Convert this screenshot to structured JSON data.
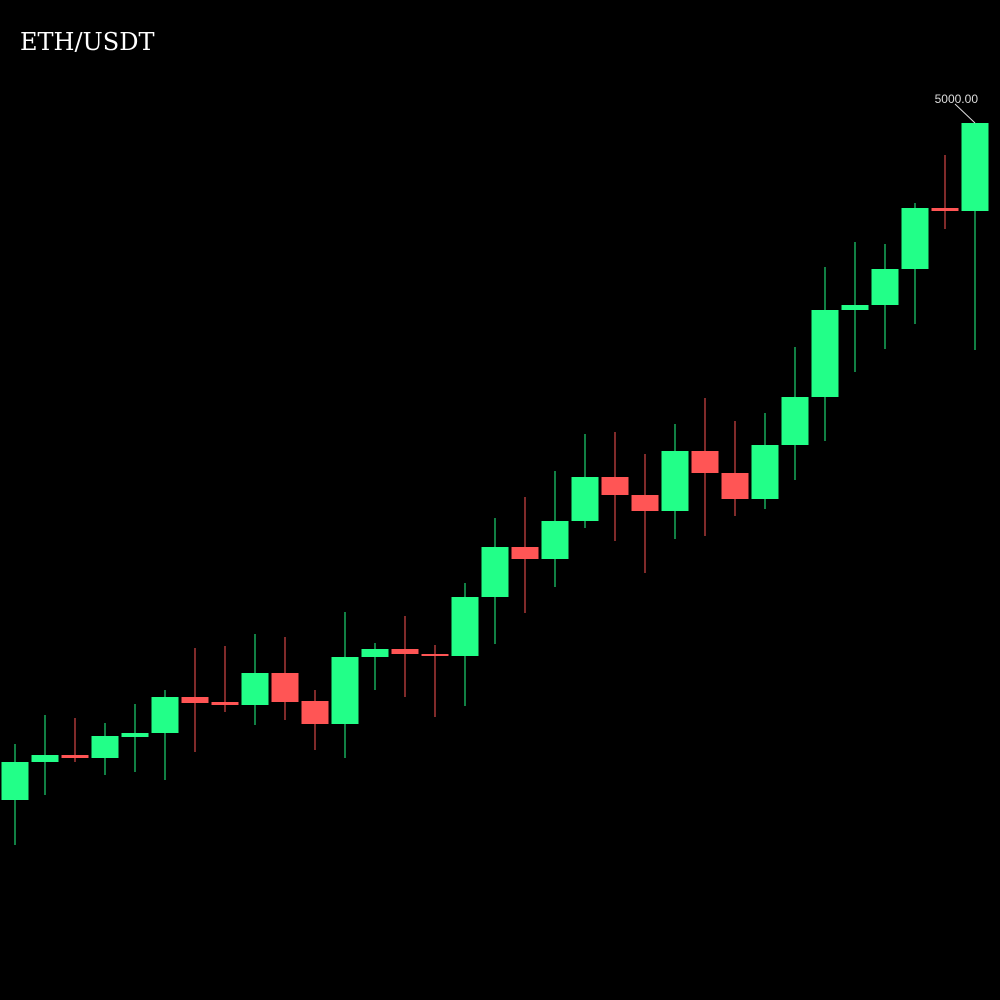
{
  "chart_data": {
    "type": "candlestick",
    "title": "ETH/USDT",
    "up_color": "#22ff88",
    "down_color": "#ff5555",
    "open": [
      1615,
      1805,
      1840,
      1825,
      1930,
      1950,
      2130,
      2105,
      2090,
      2250,
      2110,
      1995,
      2330,
      2370,
      2345,
      2335,
      2630,
      2880,
      2820,
      3010,
      3230,
      3140,
      3060,
      3360,
      3250,
      3120,
      3390,
      3630,
      4065,
      4090,
      4270,
      4575,
      4560
    ],
    "high": [
      1895,
      2040,
      2025,
      2000,
      2095,
      2165,
      2375,
      2385,
      2445,
      2430,
      2165,
      2555,
      2400,
      2535,
      2390,
      2700,
      3025,
      3130,
      3260,
      3445,
      3455,
      3345,
      3495,
      3625,
      3510,
      3550,
      3880,
      4280,
      4405,
      4395,
      4600,
      4840,
      5000
    ],
    "low": [
      1390,
      1640,
      1805,
      1740,
      1755,
      1715,
      1855,
      2055,
      1990,
      2015,
      1865,
      1825,
      2165,
      2130,
      2030,
      2085,
      2395,
      2550,
      2680,
      2975,
      2910,
      2750,
      2920,
      2935,
      3035,
      3070,
      3215,
      3410,
      3755,
      3870,
      3995,
      4470,
      3865
    ],
    "close": [
      1805,
      1840,
      1825,
      1935,
      1950,
      2130,
      2100,
      2090,
      2250,
      2105,
      1995,
      2330,
      2370,
      2345,
      2335,
      2630,
      2880,
      2820,
      3010,
      3230,
      3140,
      3060,
      3360,
      3250,
      3120,
      3390,
      3630,
      4065,
      4090,
      4270,
      4575,
      4560,
      5000
    ],
    "close_label": "5000.00"
  }
}
